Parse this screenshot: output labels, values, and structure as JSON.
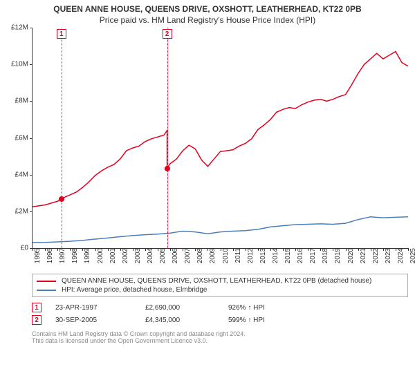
{
  "title": {
    "line1": "QUEEN ANNE HOUSE, QUEENS DRIVE, OXSHOTT, LEATHERHEAD, KT22 0PB",
    "line2": "Price paid vs. HM Land Registry's House Price Index (HPI)",
    "fontsize_line1": 12,
    "fontsize_line2": 12,
    "color": "#333333"
  },
  "chart": {
    "type": "line",
    "background_color": "#ffffff",
    "axis_color": "#333333",
    "xlim": [
      1995,
      2025
    ],
    "ylim": [
      0,
      12
    ],
    "y_axis": {
      "ticks": [
        0,
        2,
        4,
        6,
        8,
        10,
        12
      ],
      "labels": [
        "£0",
        "£2M",
        "£4M",
        "£6M",
        "£8M",
        "£10M",
        "£12M"
      ],
      "fontsize": 10
    },
    "x_axis": {
      "ticks": [
        1995,
        1996,
        1997,
        1998,
        1999,
        2000,
        2001,
        2002,
        2003,
        2004,
        2005,
        2006,
        2007,
        2008,
        2009,
        2010,
        2011,
        2012,
        2013,
        2014,
        2015,
        2016,
        2017,
        2018,
        2019,
        2020,
        2021,
        2022,
        2023,
        2024,
        2025
      ],
      "labels": [
        "1995",
        "1996",
        "1997",
        "1998",
        "1999",
        "2000",
        "2001",
        "2002",
        "2003",
        "2004",
        "2005",
        "2006",
        "2007",
        "2008",
        "2009",
        "2010",
        "2011",
        "2012",
        "2013",
        "2014",
        "2015",
        "2016",
        "2017",
        "2018",
        "2019",
        "2020",
        "2021",
        "2022",
        "2023",
        "2024",
        "2025"
      ],
      "fontsize": 10,
      "rotation": -90
    },
    "series": [
      {
        "id": "property",
        "label": "QUEEN ANNE HOUSE, QUEENS DRIVE, OXSHOTT, LEATHERHEAD, KT22 0PB (detached house)",
        "color": "#e4001c",
        "line_width": 1.5,
        "x": [
          1995,
          1995.5,
          1996,
          1996.5,
          1997,
          1997.31,
          1997.5,
          1998,
          1998.5,
          1999,
          1999.5,
          2000,
          2000.5,
          2001,
          2001.5,
          2002,
          2002.5,
          2003,
          2003.5,
          2004,
          2004.5,
          2005,
          2005.5,
          2005.75,
          2005.751,
          2006,
          2006.5,
          2007,
          2007.5,
          2008,
          2008.5,
          2009,
          2009.5,
          2010,
          2010.5,
          2011,
          2011.5,
          2012,
          2012.5,
          2013,
          2013.5,
          2014,
          2014.5,
          2015,
          2015.5,
          2016,
          2016.5,
          2017,
          2017.5,
          2018,
          2018.5,
          2019,
          2019.5,
          2020,
          2020.5,
          2021,
          2021.5,
          2022,
          2022.5,
          2023,
          2023.5,
          2024,
          2024.5,
          2025
        ],
        "y": [
          2.25,
          2.3,
          2.35,
          2.45,
          2.55,
          2.69,
          2.75,
          2.9,
          3.05,
          3.3,
          3.6,
          3.95,
          4.2,
          4.4,
          4.55,
          4.85,
          5.3,
          5.45,
          5.55,
          5.8,
          5.95,
          6.05,
          6.15,
          6.4,
          4.35,
          4.6,
          4.85,
          5.3,
          5.6,
          5.4,
          4.8,
          4.45,
          4.85,
          5.25,
          5.3,
          5.35,
          5.55,
          5.7,
          5.95,
          6.45,
          6.7,
          7.0,
          7.4,
          7.55,
          7.65,
          7.6,
          7.8,
          7.95,
          8.05,
          8.1,
          8.0,
          8.1,
          8.25,
          8.35,
          8.9,
          9.5,
          10.0,
          10.3,
          10.6,
          10.3,
          10.5,
          10.7,
          10.1,
          9.9
        ]
      },
      {
        "id": "hpi",
        "label": "HPI: Average price, detached house, Elmbridge",
        "color": "#4a7ebb",
        "line_width": 1.5,
        "x": [
          1995,
          1996,
          1997,
          1998,
          1999,
          2000,
          2001,
          2002,
          2003,
          2004,
          2005,
          2006,
          2007,
          2008,
          2009,
          2010,
          2011,
          2012,
          2013,
          2014,
          2015,
          2016,
          2017,
          2018,
          2019,
          2020,
          2021,
          2022,
          2023,
          2024,
          2025
        ],
        "y": [
          0.3,
          0.31,
          0.34,
          0.37,
          0.42,
          0.49,
          0.55,
          0.62,
          0.68,
          0.73,
          0.76,
          0.82,
          0.92,
          0.88,
          0.78,
          0.88,
          0.92,
          0.95,
          1.02,
          1.15,
          1.22,
          1.28,
          1.3,
          1.32,
          1.3,
          1.35,
          1.55,
          1.7,
          1.65,
          1.68,
          1.7
        ]
      }
    ],
    "verticals": [
      {
        "x": 1997.31,
        "color": "#e4001c",
        "dash": "dotted"
      },
      {
        "x": 2005.75,
        "color": "#e4001c",
        "dash": "dotted"
      }
    ],
    "event_markers": [
      {
        "id": 1,
        "label": "1",
        "x": 1997.31,
        "y_top": 12,
        "dot_y": 2.69,
        "color": "#e4001c"
      },
      {
        "id": 2,
        "label": "2",
        "x": 2005.75,
        "y_top": 12,
        "dot_y": 4.345,
        "color": "#e4001c"
      }
    ]
  },
  "legend": {
    "fontsize": 10,
    "border_color": "#aaaaaa",
    "items": [
      {
        "series_id": "property"
      },
      {
        "series_id": "hpi"
      }
    ]
  },
  "events": {
    "fontsize": 10,
    "rows": [
      {
        "marker": "1",
        "marker_color": "#e4001c",
        "date": "23-APR-1997",
        "price": "£2,690,000",
        "pct": "926% ↑ HPI"
      },
      {
        "marker": "2",
        "marker_color": "#e4001c",
        "date": "30-SEP-2005",
        "price": "£4,345,000",
        "pct": "599% ↑ HPI"
      }
    ]
  },
  "footnote": {
    "lines": [
      "Contains HM Land Registry data © Crown copyright and database right 2024.",
      "This data is licensed under the Open Government Licence v3.0."
    ],
    "color": "#888888",
    "fontsize": 9
  }
}
